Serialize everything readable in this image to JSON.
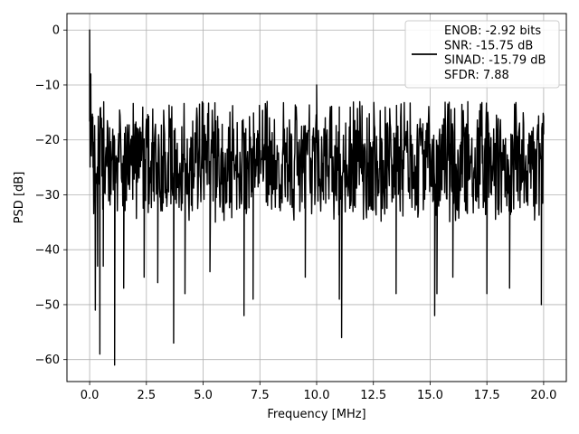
{
  "chart_data": {
    "type": "line",
    "xlabel": "Frequency [MHz]",
    "ylabel": "PSD [dB]",
    "xlim": [
      -1,
      21
    ],
    "ylim": [
      -64,
      3
    ],
    "grid": true,
    "xticks": [
      0.0,
      2.5,
      5.0,
      7.5,
      10.0,
      12.5,
      15.0,
      17.5,
      20.0
    ],
    "xtick_labels": [
      "0.0",
      "2.5",
      "5.0",
      "7.5",
      "10.0",
      "12.5",
      "15.0",
      "17.5",
      "20.0"
    ],
    "yticks": [
      0,
      -10,
      -20,
      -30,
      -40,
      -50,
      -60
    ],
    "ytick_labels": [
      "0",
      "−10",
      "−20",
      "−30",
      "−40",
      "−50",
      "−60"
    ],
    "legend": {
      "location": "upper right",
      "entries": [
        "ENOB: -2.92 bits",
        "SNR: -15.75 dB",
        "SINAD: -15.79 dB",
        "SFDR: 7.88"
      ]
    },
    "series": [
      {
        "color": "#000000",
        "noise_floor": {
          "x_start": 0.0,
          "x_end": 20.0,
          "points": 1000,
          "mean_db": -25,
          "band_top_db": -13,
          "band_bottom_db": -35
        },
        "x": [
          0.0,
          0.02,
          0.05,
          0.08,
          0.12,
          0.15,
          0.25,
          0.35,
          0.45,
          0.6,
          1.1,
          1.5,
          2.4,
          3.0,
          3.7,
          4.2,
          5.3,
          6.8,
          7.2,
          9.5,
          10.0,
          11.0,
          11.1,
          13.5,
          15.2,
          15.3,
          16.0,
          17.5,
          18.5,
          19.9,
          20.0
        ],
        "y": [
          0.0,
          -20,
          -8,
          -22,
          -16,
          -25,
          -51,
          -43,
          -59,
          -43,
          -61,
          -47,
          -45,
          -46,
          -57,
          -48,
          -44,
          -52,
          -49,
          -45,
          -10,
          -49,
          -56,
          -48,
          -52,
          -48,
          -45,
          -48,
          -47,
          -50,
          -19
        ]
      }
    ]
  }
}
